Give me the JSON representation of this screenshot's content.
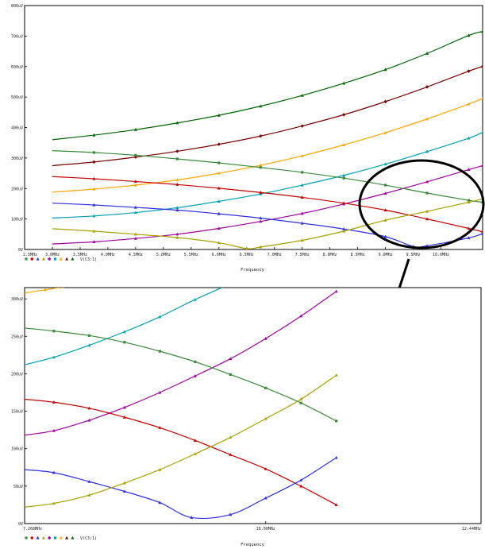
{
  "chart_data": [
    {
      "type": "line",
      "xlabel": "Frequency",
      "legend_text": "V(C3:1)",
      "x_ticks": [
        "2.5MHz",
        "3.0MHz",
        "3.5MHz",
        "4.0MHz",
        "4.5MHz",
        "5.0MHz",
        "5.5MHz",
        "6.0MHz",
        "6.5MHz",
        "7.0MHz",
        "7.5MHz",
        "8.0MHz",
        "8.5MHz",
        "9.0MHz",
        "9.5MHz",
        "10.0MHz"
      ],
      "y_ticks": [
        "0V",
        "100uV",
        "200uV",
        "300uV",
        "400uV",
        "500uV",
        "600uV",
        "700uV",
        "800uV"
      ],
      "x_unit": "MHz",
      "y_unit": "uV",
      "xlim": [
        2.5,
        10.75
      ],
      "ylim": [
        0,
        800
      ],
      "grid": false,
      "series": [
        {
          "color": "#006400",
          "marker": "triangle",
          "x": [
            3.0,
            3.75,
            4.5,
            5.25,
            6.0,
            6.75,
            7.5,
            8.25,
            9.0,
            9.75,
            10.5,
            10.75
          ],
          "values": [
            360,
            375,
            393,
            415,
            440,
            470,
            505,
            545,
            590,
            643,
            702,
            715
          ]
        },
        {
          "color": "#7b0000",
          "marker": "diamond",
          "x": [
            3.0,
            3.75,
            4.5,
            5.25,
            6.0,
            6.75,
            7.5,
            8.25,
            9.0,
            9.75,
            10.5,
            10.75
          ],
          "values": [
            275,
            287,
            303,
            322,
            345,
            372,
            405,
            442,
            485,
            533,
            585,
            600
          ]
        },
        {
          "color": "#ffa500",
          "marker": "triangle",
          "x": [
            3.0,
            3.75,
            4.5,
            5.25,
            6.0,
            6.75,
            7.5,
            8.25,
            9.0,
            9.75,
            10.5,
            10.75
          ],
          "values": [
            188,
            198,
            211,
            228,
            250,
            276,
            307,
            343,
            383,
            428,
            477,
            495
          ]
        },
        {
          "color": "#00a0b0",
          "marker": "triangle",
          "x": [
            3.0,
            3.75,
            4.5,
            5.25,
            6.0,
            6.75,
            7.5,
            8.25,
            9.0,
            9.75,
            10.5,
            10.75
          ],
          "values": [
            103,
            110,
            121,
            137,
            158,
            182,
            211,
            243,
            280,
            321,
            365,
            384
          ]
        },
        {
          "color": "#a000a0",
          "marker": "triangle",
          "x": [
            3.0,
            3.75,
            4.5,
            5.25,
            6.0,
            6.75,
            7.5,
            8.25,
            9.0,
            9.75,
            10.5,
            10.75
          ],
          "values": [
            18,
            25,
            36,
            50,
            69,
            92,
            118,
            149,
            184,
            222,
            262,
            275
          ]
        },
        {
          "color": "#3a8a3a",
          "marker": "square",
          "x": [
            3.0,
            3.75,
            4.5,
            5.25,
            6.0,
            6.75,
            7.5,
            8.25,
            9.0,
            9.75,
            10.5,
            10.75
          ],
          "values": [
            324,
            318,
            309,
            297,
            284,
            269,
            253,
            234,
            211,
            185,
            161,
            155
          ]
        },
        {
          "color": "#c00000",
          "marker": "triangle",
          "x": [
            3.0,
            3.75,
            4.5,
            5.25,
            6.0,
            6.75,
            7.5,
            8.25,
            9.0,
            9.75,
            10.5,
            10.75
          ],
          "values": [
            239,
            232,
            223,
            213,
            201,
            187,
            171,
            152,
            129,
            100,
            69,
            58
          ]
        },
        {
          "color": "#3030e0",
          "marker": "triangle",
          "x": [
            3.0,
            3.75,
            4.5,
            5.25,
            6.0,
            6.75,
            7.5,
            8.25,
            9.0,
            9.5,
            9.75,
            10.5,
            10.75
          ],
          "values": [
            152,
            146,
            138,
            129,
            117,
            103,
            86,
            67,
            42,
            10,
            12,
            38,
            52
          ]
        },
        {
          "color": "#a8a000",
          "marker": "triangle",
          "x": [
            3.0,
            3.75,
            4.5,
            5.25,
            6.0,
            6.5,
            6.75,
            7.5,
            8.25,
            9.0,
            9.75,
            10.5,
            10.75
          ],
          "values": [
            68,
            60,
            50,
            39,
            22,
            3,
            8,
            30,
            60,
            96,
            125,
            155,
            166
          ]
        }
      ]
    },
    {
      "type": "line",
      "xlabel": "Frequency",
      "legend_text": "V(C3:1)",
      "x_ticks": [
        "7.268MHz",
        "10.00MHz",
        "12.44MHz"
      ],
      "y_ticks": [
        "0V",
        "50uV",
        "100uV",
        "150uV",
        "200uV",
        "250uV",
        "300uV"
      ],
      "x_unit": "MHz",
      "y_unit": "uV",
      "xlim": [
        7.268,
        12.44
      ],
      "ylim": [
        0,
        315
      ],
      "grid": false,
      "series": [
        {
          "color": "#ffa500",
          "marker": "triangle",
          "x": [
            7.268,
            7.5,
            7.7
          ],
          "values": [
            308,
            312,
            316
          ]
        },
        {
          "color": "#00a0b0",
          "marker": "triangle",
          "x": [
            7.268,
            7.6,
            8.0,
            8.4,
            8.8,
            9.2,
            9.6
          ],
          "values": [
            212,
            222,
            238,
            256,
            276,
            299,
            320
          ]
        },
        {
          "color": "#a000a0",
          "marker": "triangle",
          "x": [
            7.268,
            7.6,
            8.0,
            8.4,
            8.8,
            9.2,
            9.6,
            10.0,
            10.4,
            10.8
          ],
          "values": [
            118,
            124,
            138,
            155,
            175,
            197,
            220,
            247,
            277,
            310
          ]
        },
        {
          "color": "#3a8a3a",
          "marker": "square",
          "x": [
            7.268,
            7.6,
            8.0,
            8.4,
            8.8,
            9.2,
            9.6,
            10.0,
            10.4,
            10.8
          ],
          "values": [
            261,
            257,
            251,
            242,
            230,
            216,
            199,
            181,
            161,
            137
          ]
        },
        {
          "color": "#c00000",
          "marker": "triangle",
          "x": [
            7.268,
            7.6,
            8.0,
            8.4,
            8.8,
            9.2,
            9.6,
            10.0,
            10.4,
            10.8
          ],
          "values": [
            166,
            162,
            154,
            142,
            128,
            111,
            92,
            73,
            50,
            25
          ]
        },
        {
          "color": "#3030e0",
          "marker": "triangle",
          "x": [
            7.268,
            7.6,
            8.0,
            8.4,
            8.8,
            9.16,
            9.6,
            10.0,
            10.4,
            10.8
          ],
          "values": [
            72,
            68,
            56,
            43,
            28,
            8,
            12,
            34,
            58,
            88
          ]
        },
        {
          "color": "#a8a000",
          "marker": "triangle",
          "x": [
            7.268,
            7.6,
            8.0,
            8.4,
            8.8,
            9.2,
            9.6,
            10.0,
            10.4,
            10.8
          ],
          "values": [
            22,
            27,
            38,
            54,
            72,
            93,
            115,
            140,
            166,
            198
          ]
        }
      ]
    }
  ]
}
